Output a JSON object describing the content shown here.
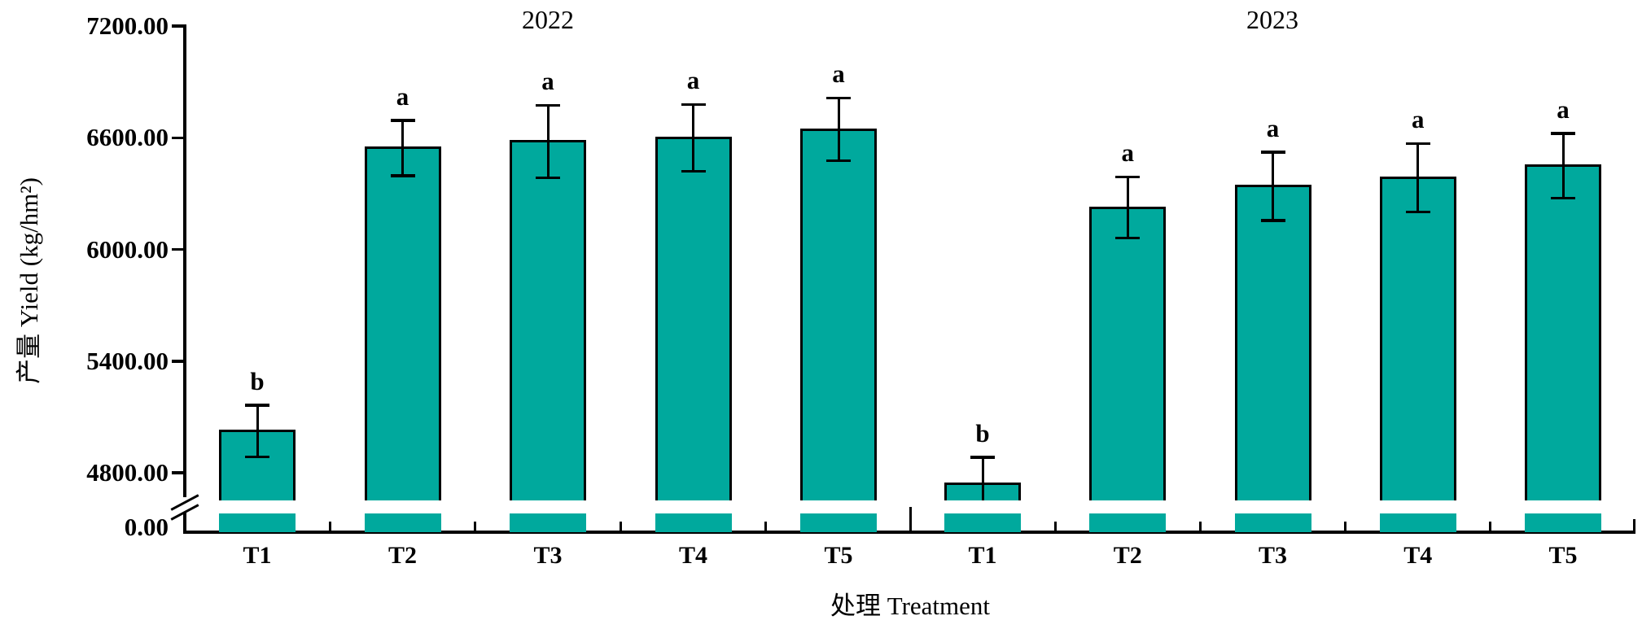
{
  "chart_data": {
    "type": "bar",
    "title": "",
    "ylabel": "产量 Yield (kg/hm²)",
    "xlabel": "处理 Treatment",
    "unit": "kg/hm²",
    "bar_color": "#00A99D",
    "grid": false,
    "legend": "none",
    "y_ticks": [
      {
        "label": "7200.00",
        "value": 7200
      },
      {
        "label": "6600.00",
        "value": 6600
      },
      {
        "label": "6000.00",
        "value": 6000
      },
      {
        "label": "5400.00",
        "value": 5400
      },
      {
        "label": "4800.00",
        "value": 4800
      },
      {
        "label": "0.00",
        "value": 0
      }
    ],
    "axis_break": {
      "between": [
        0,
        4600
      ],
      "style": "double-slash"
    },
    "categories": [
      "T1",
      "T2",
      "T3",
      "T4",
      "T5"
    ],
    "groups": [
      {
        "year": "2022",
        "values": [
          5025,
          6545,
          6580,
          6600,
          6645
        ],
        "errors": [
          140,
          150,
          195,
          180,
          170
        ],
        "sig_letters": [
          "b",
          "a",
          "a",
          "a",
          "a"
        ]
      },
      {
        "year": "2023",
        "values": [
          4740,
          6225,
          6340,
          6385,
          6450
        ],
        "errors": [
          145,
          165,
          185,
          185,
          175
        ],
        "sig_letters": [
          "b",
          "a",
          "a",
          "a",
          "a"
        ]
      }
    ]
  },
  "labels": {
    "year_left": "2022",
    "year_right": "2023",
    "y_axis_title": "产量 Yield (kg/hm²)",
    "x_axis_title": "处理 Treatment"
  }
}
